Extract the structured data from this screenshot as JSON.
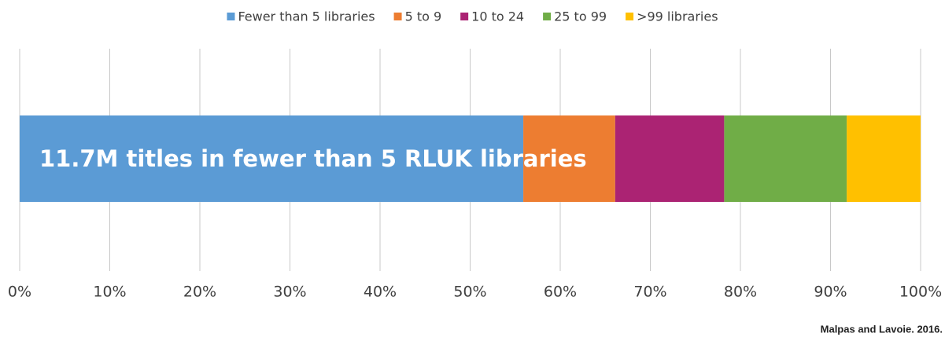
{
  "chart_data": {
    "type": "bar",
    "orientation": "horizontal",
    "stacked": true,
    "categories": [
      null
    ],
    "series": [
      {
        "name": "Fewer than 5 libraries",
        "color": "#5b9bd5",
        "values": [
          55.9
        ]
      },
      {
        "name": "5 to 9",
        "color": "#ed7d31",
        "values": [
          10.2
        ]
      },
      {
        "name": "10 to 24",
        "color": "#ab2373",
        "values": [
          12.1
        ]
      },
      {
        "name": "25 to 99",
        "color": "#70ad47",
        "values": [
          13.6
        ]
      },
      {
        "name": ">99 libraries",
        "color": "#ffc000",
        "values": [
          8.2
        ]
      }
    ],
    "xlim": [
      0,
      100
    ],
    "xticks": [
      {
        "value": 0,
        "label": "0%"
      },
      {
        "value": 10,
        "label": "10%"
      },
      {
        "value": 20,
        "label": "20%"
      },
      {
        "value": 30,
        "label": "30%"
      },
      {
        "value": 40,
        "label": "40%"
      },
      {
        "value": 50,
        "label": "50%"
      },
      {
        "value": 60,
        "label": "60%"
      },
      {
        "value": 70,
        "label": "70%"
      },
      {
        "value": 80,
        "label": "80%"
      },
      {
        "value": 90,
        "label": "90%"
      },
      {
        "value": 100,
        "label": "100%"
      }
    ],
    "grid": true,
    "legend": "top",
    "annotation": "11.7M titles in fewer than 5 RLUK libraries",
    "source": "Malpas and Lavoie. 2016."
  }
}
